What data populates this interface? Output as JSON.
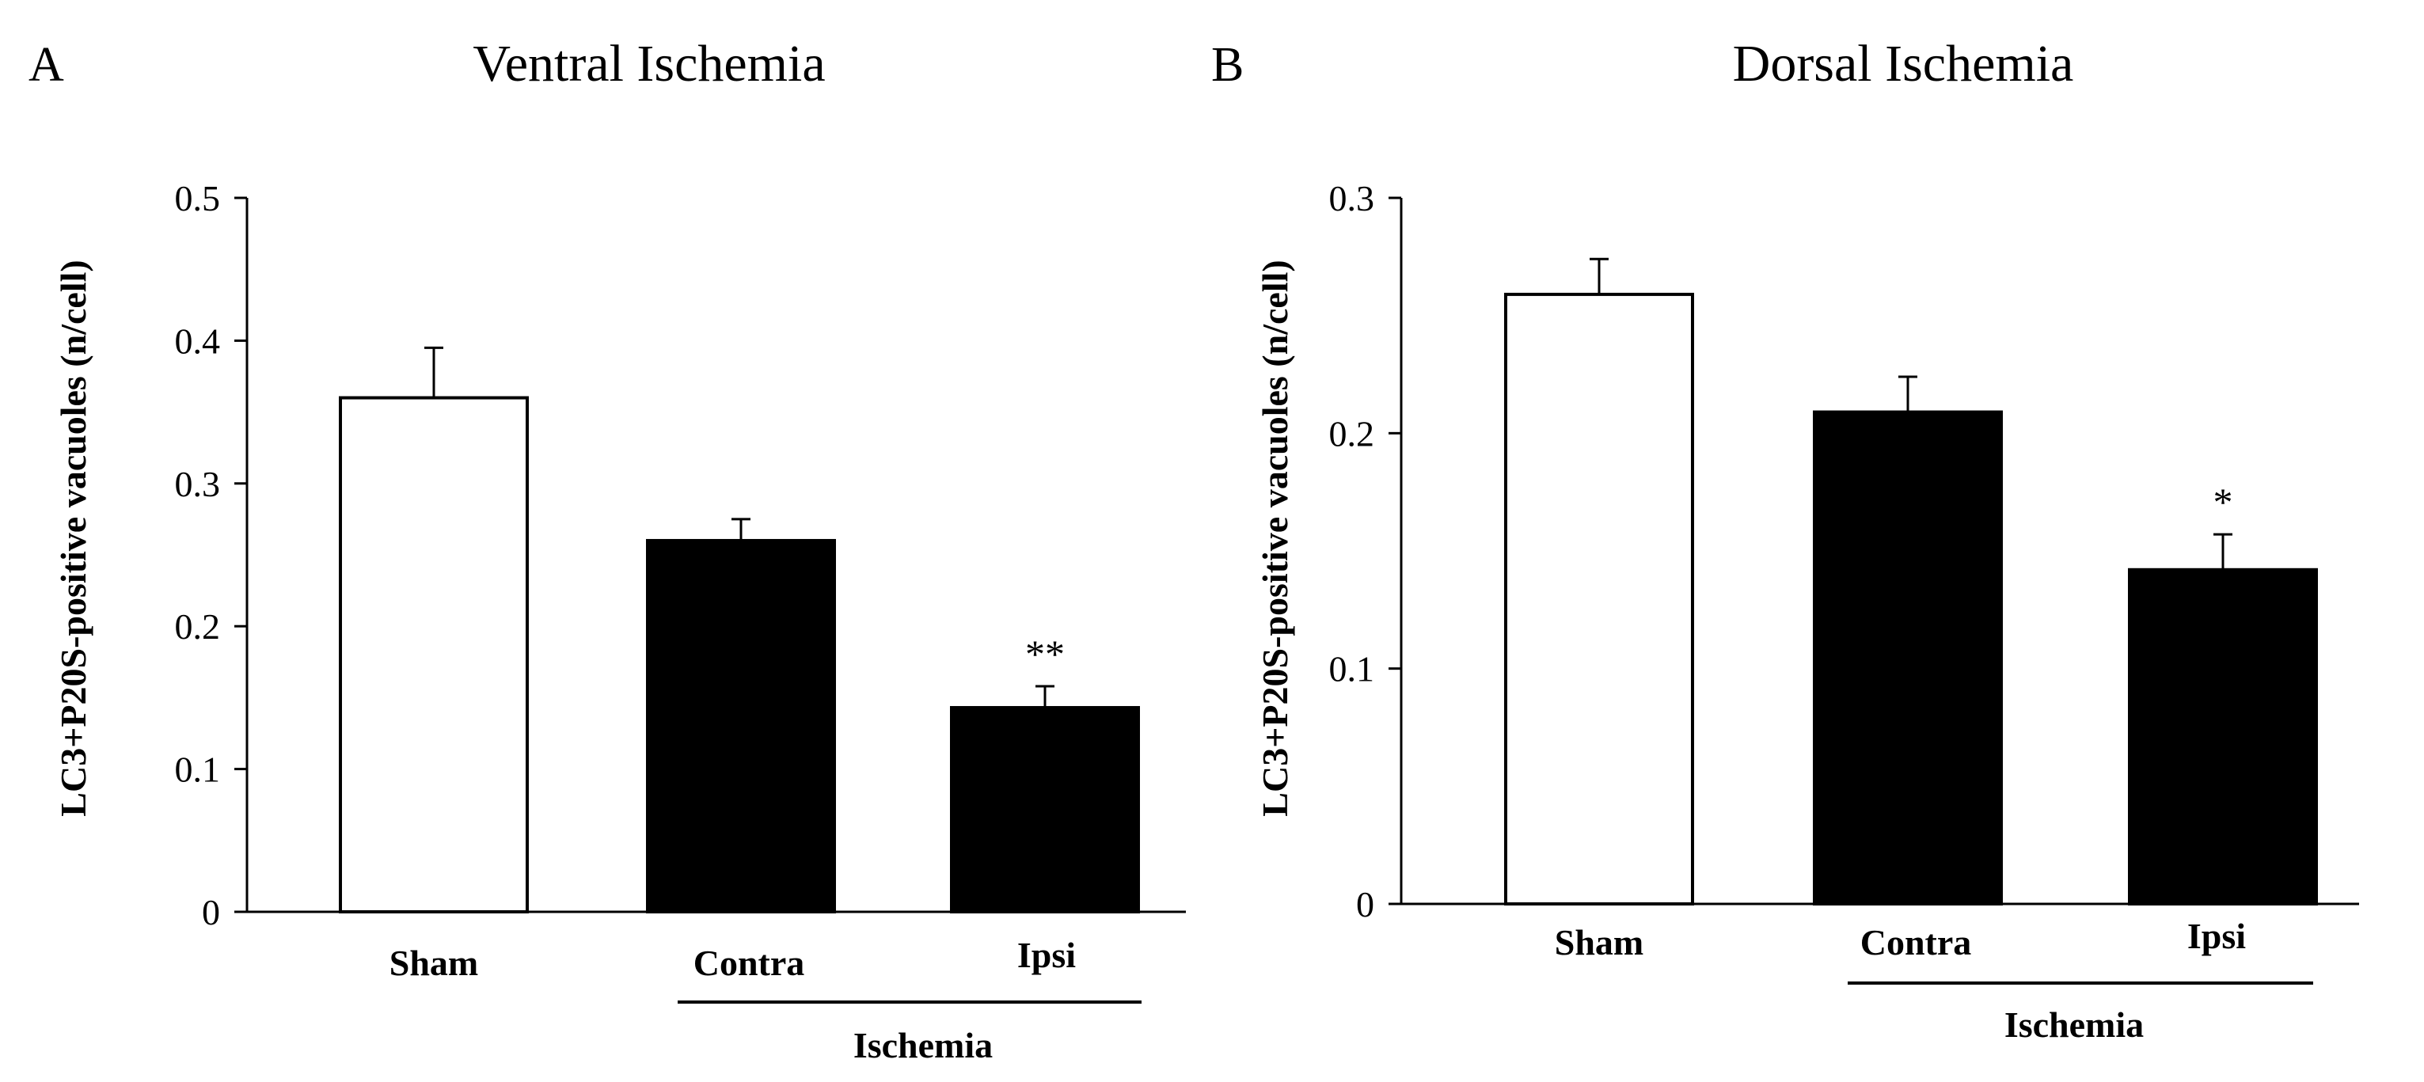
{
  "chart_data": [
    {
      "type": "bar",
      "panel_label": "A",
      "title": "Ventral Ischemia",
      "ylabel": "LC3+P20S-positive vacuoles (n/cell)",
      "xlabel": "",
      "ylim": [
        0,
        0.5
      ],
      "yticks": [
        {
          "value": 0,
          "label": "0"
        },
        {
          "value": 0.1,
          "label": "0.1"
        },
        {
          "value": 0.2,
          "label": "0.2"
        },
        {
          "value": 0.3,
          "label": "0.3"
        },
        {
          "value": 0.4,
          "label": "0.4"
        },
        {
          "value": 0.5,
          "label": "0.5"
        }
      ],
      "categories": [
        "Sham",
        "Contra",
        "Ipsi"
      ],
      "values": [
        0.36,
        0.26,
        0.143
      ],
      "errors": [
        0.035,
        0.015,
        0.015
      ],
      "fills": [
        "#ffffff",
        "#000000",
        "#000000"
      ],
      "significance": [
        "",
        "",
        "**"
      ],
      "group_label": "Ischemia",
      "group_members": [
        "Contra",
        "Ipsi"
      ],
      "grid": false
    },
    {
      "type": "bar",
      "panel_label": "B",
      "title": "Dorsal Ischemia",
      "ylabel": "LC3+P20S-positive vacuoles (n/cell)",
      "xlabel": "",
      "ylim": [
        0,
        0.3
      ],
      "yticks": [
        {
          "value": 0,
          "label": "0"
        },
        {
          "value": 0.1,
          "label": "0.1"
        },
        {
          "value": 0.2,
          "label": "0.2"
        },
        {
          "value": 0.3,
          "label": "0.3"
        }
      ],
      "categories": [
        "Sham",
        "Contra",
        "Ipsi"
      ],
      "values": [
        0.259,
        0.209,
        0.142
      ],
      "errors": [
        0.015,
        0.015,
        0.015
      ],
      "fills": [
        "#ffffff",
        "#000000",
        "#000000"
      ],
      "significance": [
        "",
        "",
        "*"
      ],
      "group_label": "Ischemia",
      "group_members": [
        "Contra",
        "Ipsi"
      ],
      "grid": false
    }
  ]
}
